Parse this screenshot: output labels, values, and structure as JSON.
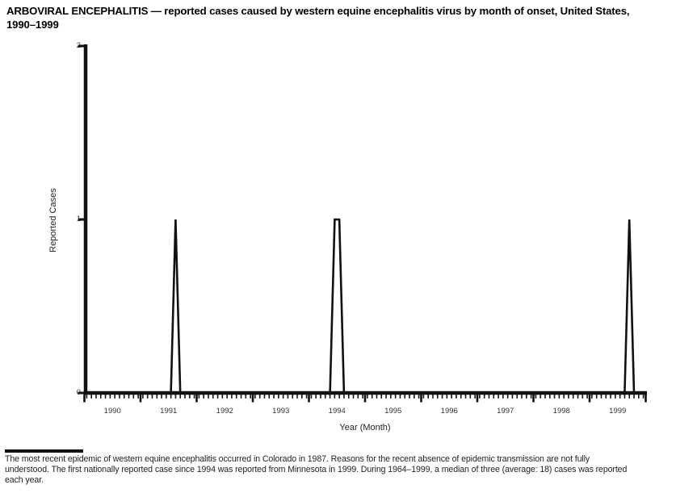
{
  "page": {
    "background": "#ffffff",
    "ink": "#111111"
  },
  "header": {
    "title_line1": "ARBOVIRAL ENCEPHALITIS — reported cases caused by western equine encephalitis virus by month of onset, United States,",
    "title_line2": "1990–1999"
  },
  "chart_data": {
    "type": "line",
    "title": "ARBOVIRAL ENCEPHALITIS — reported cases caused by western equine encephalitis virus by month of onset, United States, 1990–1999",
    "xlabel": "Year (Month)",
    "ylabel": "Reported Cases",
    "ylim": [
      0,
      2
    ],
    "yticks": [
      0,
      1,
      2
    ],
    "years": [
      1990,
      1991,
      1992,
      1993,
      1994,
      1995,
      1996,
      1997,
      1998,
      1999
    ],
    "x_unit": "month",
    "x_range": "Jan 1990 – Dec 1999",
    "baseline_value": 0,
    "points_note": "monthly reported cases; every month is 0 except the spikes listed in nonzero_points",
    "nonzero_points": [
      {
        "year": 1991,
        "month": "Aug",
        "month_num": 8,
        "value": 1
      },
      {
        "year": 1994,
        "month": "Jun",
        "month_num": 6,
        "value": 1
      },
      {
        "year": 1994,
        "month": "Jul",
        "month_num": 7,
        "value": 1
      },
      {
        "year": 1999,
        "month": "Sep",
        "month_num": 9,
        "value": 1
      }
    ],
    "line_color": "#111111",
    "grid": false,
    "legend": false
  },
  "footnote": {
    "lines": [
      "The most recent epidemic of western equine encephalitis occurred in Colorado in 1987. Reasons for the recent absence of epidemic transmission are not fully",
      "understood. The first nationally reported case since 1994 was reported from Minnesota in 1999. During 1964–1999, a median of three (average: 18) cases was reported",
      "each year."
    ]
  }
}
